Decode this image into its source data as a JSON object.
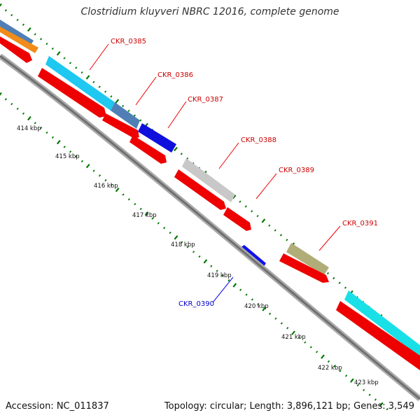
{
  "title": "Clostridium kluyveri NBRC 12016, complete genome",
  "footer": {
    "accession": "Accession: NC_011837",
    "info": "Topology: circular; Length: 3,896,121 bp; Genes: 3,549"
  },
  "colors": {
    "forward_cds": "#ff0000",
    "reverse_cds": "#0000ff",
    "label_forward": "#cc0000",
    "label_reverse": "#0000cc",
    "backbone": "#777777",
    "tick": "#007700"
  },
  "kbp_labels": [
    "414 kbp",
    "415 kbp",
    "416 kbp",
    "417 kbp",
    "418 kbp",
    "419 kbp",
    "420 kbp",
    "421 kbp",
    "422 kbp",
    "423 kbp"
  ],
  "genes": [
    {
      "label": "CKR_0385",
      "strand": "forward"
    },
    {
      "label": "CKR_0386",
      "strand": "forward"
    },
    {
      "label": "CKR_0387",
      "strand": "forward"
    },
    {
      "label": "CKR_0388",
      "strand": "forward"
    },
    {
      "label": "CKR_0389",
      "strand": "forward"
    },
    {
      "label": "CKR_0390",
      "strand": "reverse"
    },
    {
      "label": "CKR_0391",
      "strand": "forward"
    }
  ]
}
